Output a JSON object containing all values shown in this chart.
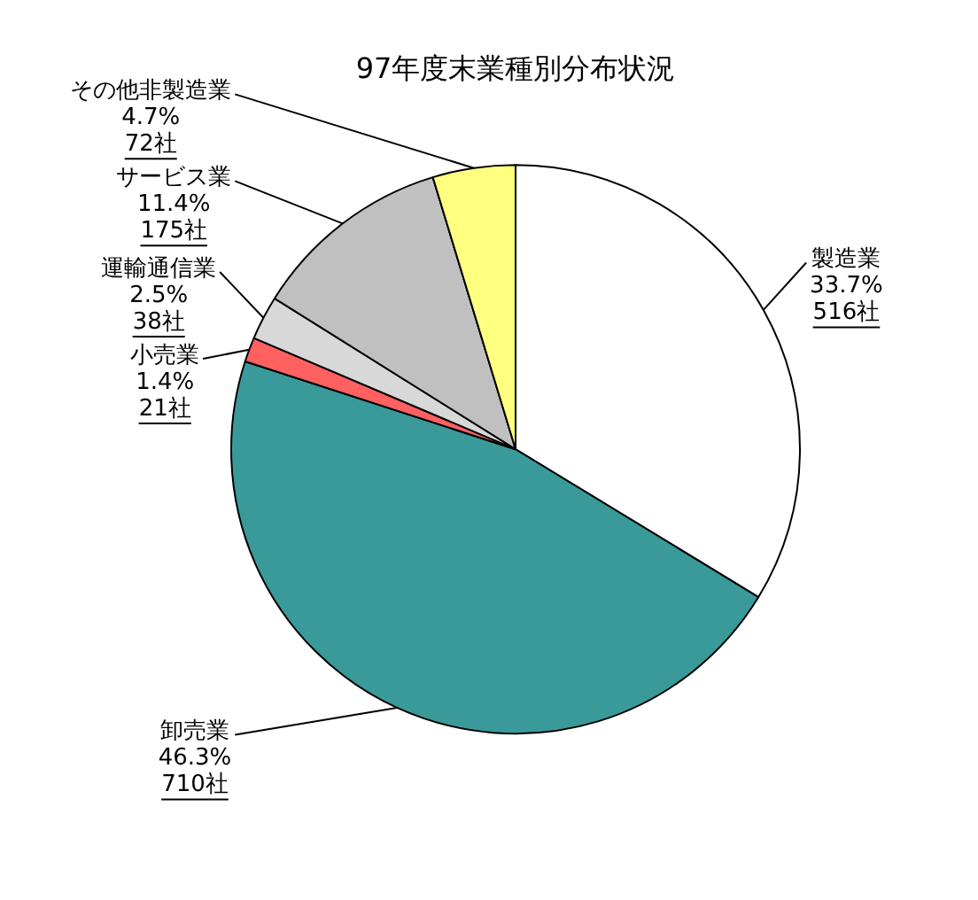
{
  "chart_data": {
    "type": "pie",
    "title": "97年度末業種別分布状況",
    "categories": [
      "製造業",
      "卸売業",
      "小売業",
      "運輸通信業",
      "サービス業",
      "その他非製造業"
    ],
    "values": [
      33.7,
      46.3,
      1.4,
      2.5,
      11.4,
      4.7
    ],
    "colors": [
      "#ffffff",
      "#3a9a9a",
      "#ff6060",
      "#d8d8d8",
      "#c0c0c0",
      "#ffff80"
    ],
    "value_labels": [
      "33.7%",
      "46.3%",
      "1.4%",
      "2.5%",
      "11.4%",
      "4.7%"
    ],
    "annotations": [
      "516社",
      "710社",
      "21社",
      "38社",
      "175社",
      "72社"
    ],
    "legend": false
  }
}
